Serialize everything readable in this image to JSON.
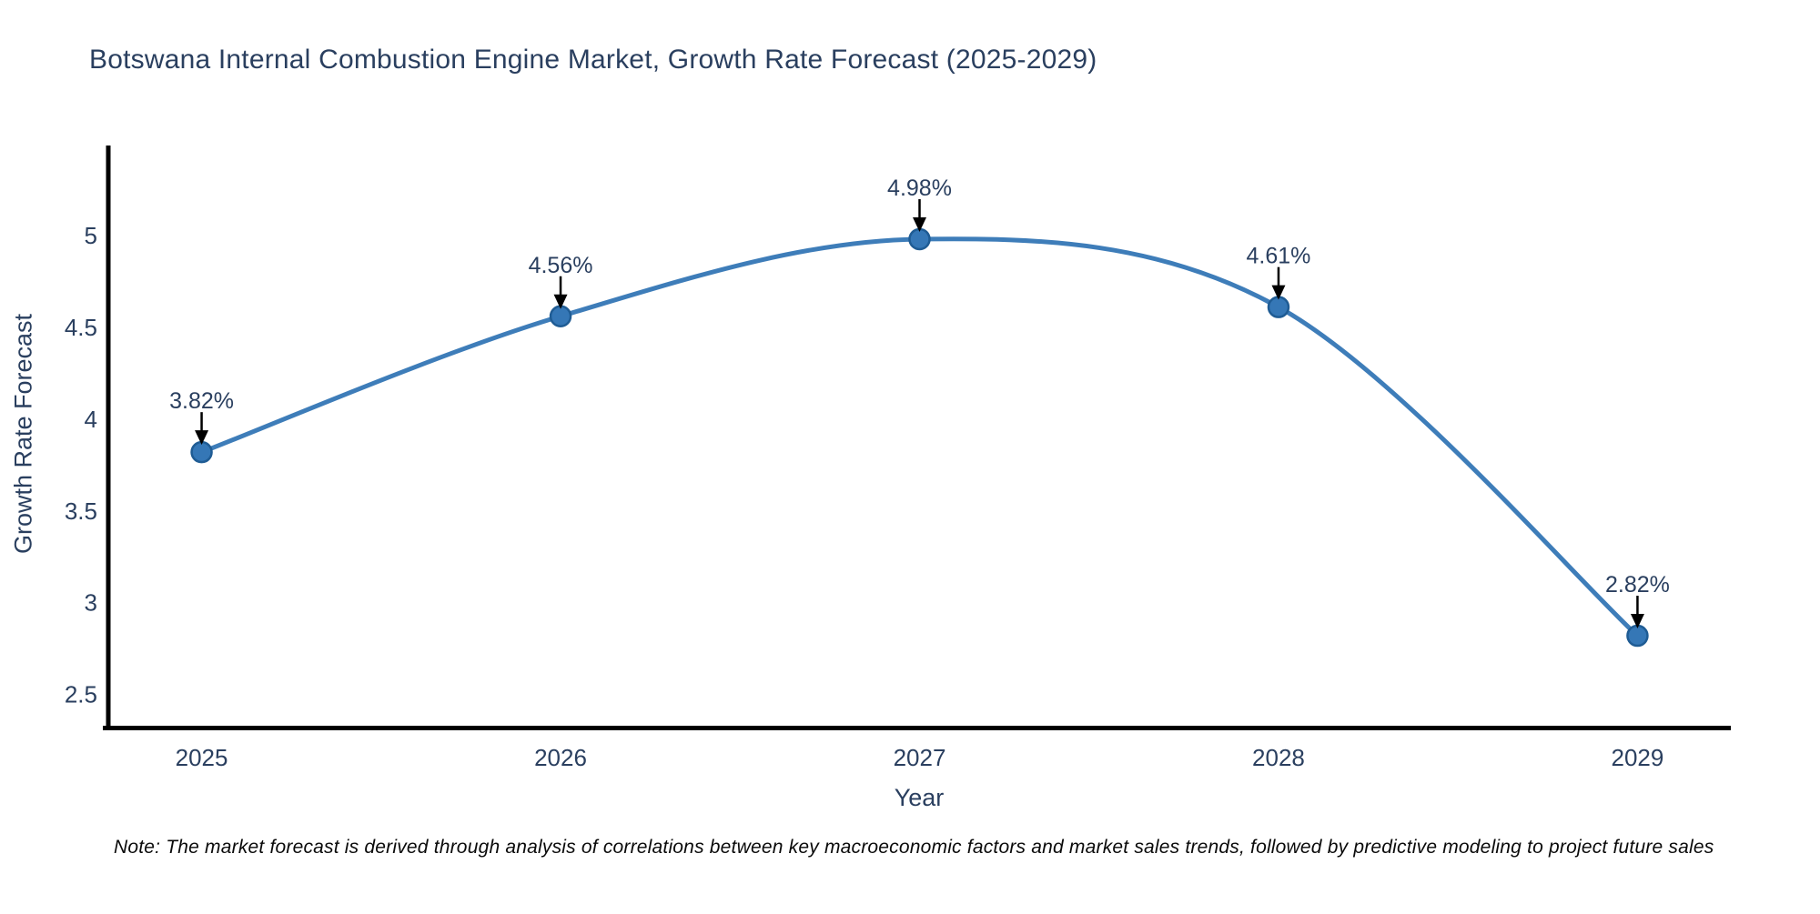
{
  "note": "Note: The market forecast is derived through analysis of correlations between key macroeconomic factors and market sales trends, followed by predictive modeling to project future sales",
  "chart_data": {
    "type": "line",
    "title": "Botswana Internal Combustion Engine Market, Growth Rate Forecast (2025-2029)",
    "xlabel": "Year",
    "ylabel": "Growth Rate Forecast",
    "x": [
      2025,
      2026,
      2027,
      2028,
      2029
    ],
    "values": [
      3.82,
      4.56,
      4.98,
      4.61,
      2.82
    ],
    "point_labels": [
      "3.82%",
      "4.56%",
      "4.98%",
      "4.61%",
      "2.82%"
    ],
    "xticks": [
      2025,
      2026,
      2027,
      2028,
      2029
    ],
    "yticks": [
      2.5,
      3,
      3.5,
      4,
      4.5,
      5
    ],
    "xlim": [
      2024.74,
      2029.26
    ],
    "ylim": [
      2.32,
      5.49
    ],
    "line_shape": "spline",
    "grid": false,
    "legend": false,
    "colors": {
      "line": "#3e7db9",
      "marker_fill": "#3577b6",
      "marker_stroke": "#1f5c94",
      "axis_line": "#000000",
      "text": "#2a3f5f",
      "annotation_arrow": "#000000",
      "note_text": "#0a0a0a",
      "background": "#ffffff"
    }
  }
}
